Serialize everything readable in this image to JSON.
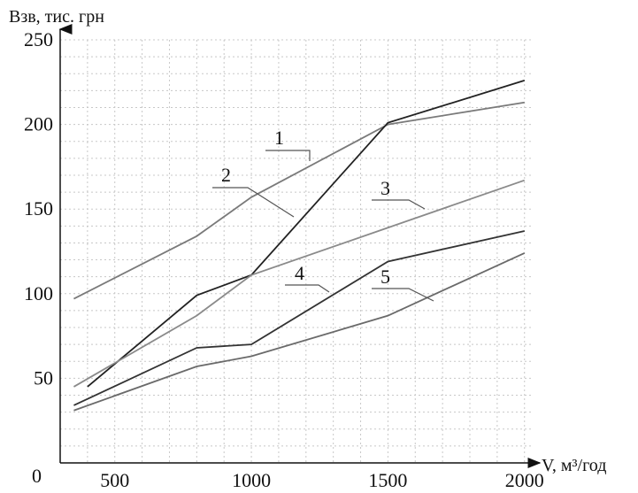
{
  "chart_data": {
    "type": "line",
    "ylabel": "Взв, тис. грн",
    "xlabel": "V, м³/год",
    "origin_label": "0",
    "xlim": [
      300,
      2000
    ],
    "ylim": [
      0,
      250
    ],
    "x_ticks": [
      500,
      1000,
      1500,
      2000
    ],
    "y_ticks": [
      50,
      100,
      150,
      200,
      250
    ],
    "grid": true,
    "series": [
      {
        "name": "1",
        "color": "#7a7a7a",
        "x": [
          350,
          800,
          1000,
          1500,
          2000
        ],
        "y": [
          97,
          134,
          157,
          200,
          213
        ]
      },
      {
        "name": "2",
        "color": "#222222",
        "x": [
          400,
          800,
          1000,
          1500,
          2000
        ],
        "y": [
          45,
          99,
          111,
          201,
          226
        ]
      },
      {
        "name": "3",
        "color": "#8a8a8a",
        "x": [
          350,
          800,
          1000,
          1500,
          2000
        ],
        "y": [
          45,
          87,
          111,
          139,
          167
        ]
      },
      {
        "name": "4",
        "color": "#333333",
        "x": [
          350,
          800,
          1000,
          1500,
          2000
        ],
        "y": [
          34,
          68,
          70,
          119,
          137
        ]
      },
      {
        "name": "5",
        "color": "#6a6a6a",
        "x": [
          350,
          800,
          1000,
          1500,
          2000
        ],
        "y": [
          31,
          57,
          63,
          87,
          124
        ]
      }
    ]
  }
}
